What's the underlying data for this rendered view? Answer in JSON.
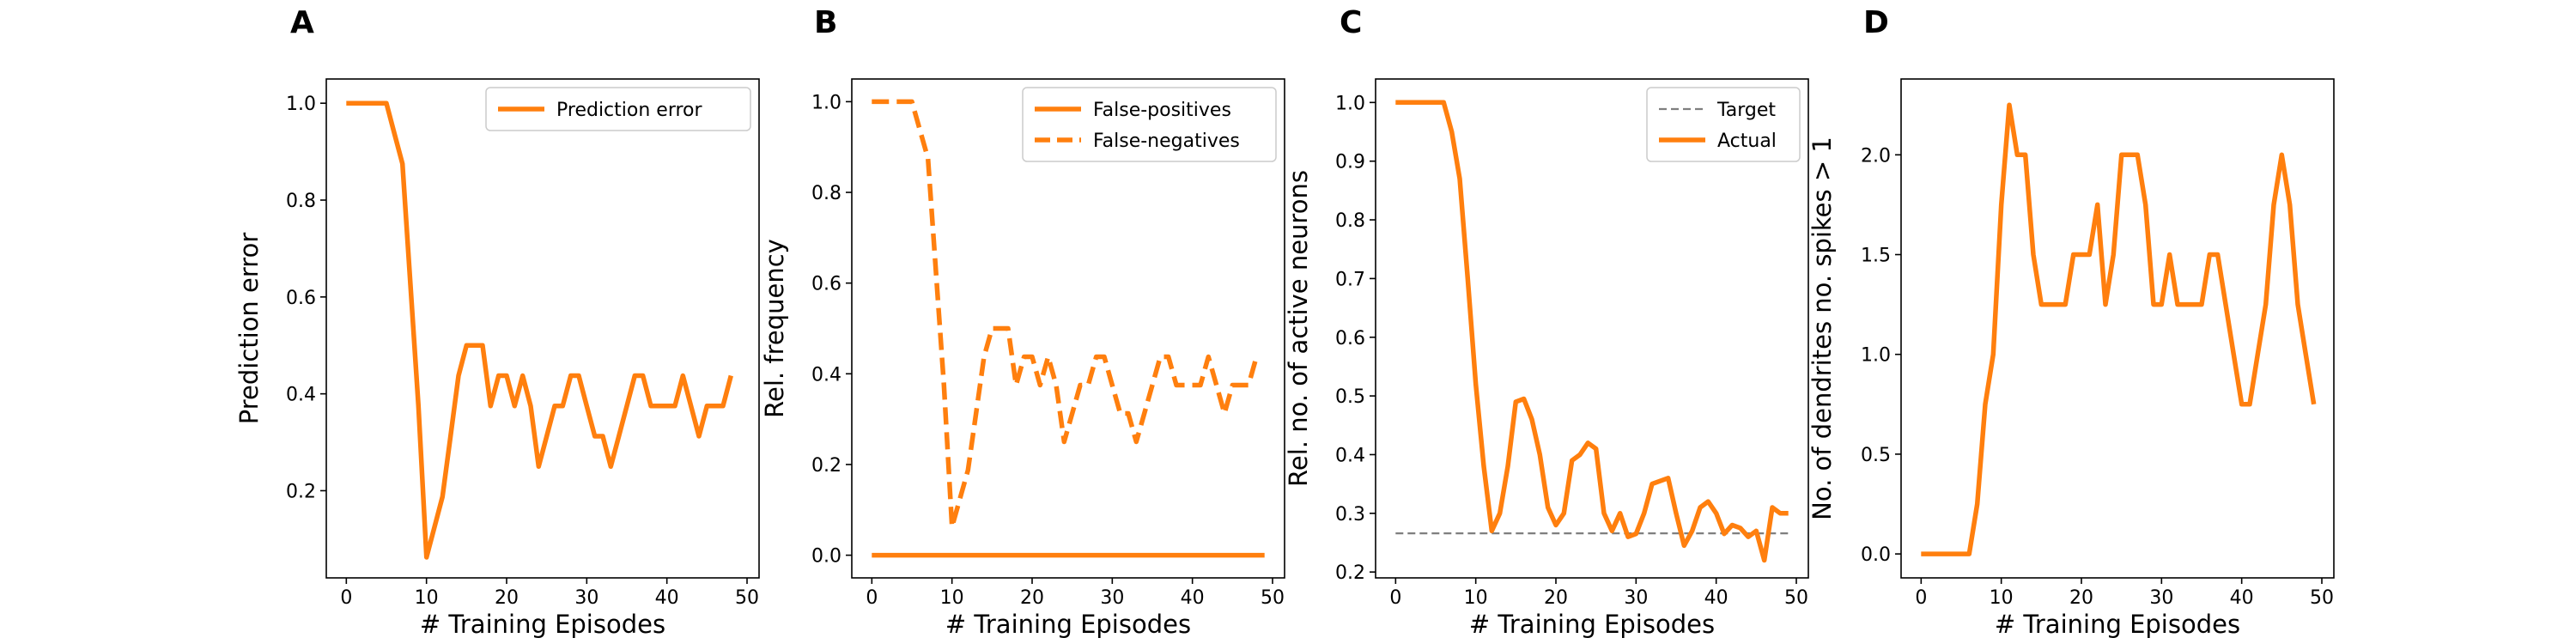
{
  "colors": {
    "orange": "#ff7f0e",
    "target_gray": "#7f7f7f"
  },
  "chart_data": [
    {
      "type": "line",
      "panel_label": "A",
      "xlabel": "# Training Episodes",
      "ylabel": "Prediction error",
      "xlim": [
        -2.5,
        51.5
      ],
      "ylim": [
        0.02,
        1.05
      ],
      "xticks": [
        0,
        10,
        20,
        30,
        40,
        50
      ],
      "yticks": [
        0.2,
        0.4,
        0.6,
        0.8,
        1.0
      ],
      "ytick_labels": [
        "0.2",
        "0.4",
        "0.6",
        "0.8",
        "1.0"
      ],
      "legend_position": "top-right",
      "grid": false,
      "series": [
        {
          "name": "Prediction error",
          "style": "solid",
          "y": [
            1.0,
            1.0,
            1.0,
            1.0,
            1.0,
            1.0,
            0.9375,
            0.875,
            0.625,
            0.375,
            0.0625,
            0.125,
            0.1875,
            0.3125,
            0.4375,
            0.5,
            0.5,
            0.5,
            0.375,
            0.4375,
            0.4375,
            0.375,
            0.4375,
            0.375,
            0.25,
            0.3125,
            0.375,
            0.375,
            0.4375,
            0.4375,
            0.375,
            0.3125,
            0.3125,
            0.25,
            0.3125,
            0.375,
            0.4375,
            0.4375,
            0.375,
            0.375,
            0.375,
            0.375,
            0.4375,
            0.375,
            0.3125,
            0.375,
            0.375,
            0.375,
            0.4375
          ]
        }
      ]
    },
    {
      "type": "line",
      "panel_label": "B",
      "xlabel": "# Training Episodes",
      "ylabel": "Rel. frequency",
      "xlim": [
        -2.5,
        51.5
      ],
      "ylim": [
        -0.05,
        1.05
      ],
      "xticks": [
        0,
        10,
        20,
        30,
        40,
        50
      ],
      "yticks": [
        0.0,
        0.2,
        0.4,
        0.6,
        0.8,
        1.0
      ],
      "ytick_labels": [
        "0.0",
        "0.2",
        "0.4",
        "0.6",
        "0.8",
        "1.0"
      ],
      "legend_position": "top-right",
      "grid": false,
      "series": [
        {
          "name": "False-positives",
          "style": "solid",
          "y": [
            0,
            0,
            0,
            0,
            0,
            0,
            0,
            0,
            0,
            0,
            0,
            0,
            0,
            0,
            0,
            0,
            0,
            0,
            0,
            0,
            0,
            0,
            0,
            0,
            0,
            0,
            0,
            0,
            0,
            0,
            0,
            0,
            0,
            0,
            0,
            0,
            0,
            0,
            0,
            0,
            0,
            0,
            0,
            0,
            0,
            0,
            0,
            0,
            0,
            0
          ]
        },
        {
          "name": "False-negatives",
          "style": "dashed",
          "y": [
            1.0,
            1.0,
            1.0,
            1.0,
            1.0,
            1.0,
            0.9375,
            0.875,
            0.625,
            0.375,
            0.0625,
            0.125,
            0.1875,
            0.3125,
            0.4375,
            0.5,
            0.5,
            0.5,
            0.375,
            0.4375,
            0.4375,
            0.375,
            0.4375,
            0.375,
            0.25,
            0.3125,
            0.375,
            0.375,
            0.4375,
            0.4375,
            0.375,
            0.3125,
            0.3125,
            0.25,
            0.3125,
            0.375,
            0.4375,
            0.4375,
            0.375,
            0.375,
            0.375,
            0.375,
            0.4375,
            0.375,
            0.3125,
            0.375,
            0.375,
            0.375,
            0.4375
          ]
        }
      ]
    },
    {
      "type": "line",
      "panel_label": "C",
      "xlabel": "# Training Episodes",
      "ylabel": "Rel. no. of active neurons",
      "xlim": [
        -2.5,
        51.5
      ],
      "ylim": [
        0.19,
        1.04
      ],
      "xticks": [
        0,
        10,
        20,
        30,
        40,
        50
      ],
      "yticks": [
        0.2,
        0.3,
        0.4,
        0.5,
        0.6,
        0.7,
        0.8,
        0.9,
        1.0
      ],
      "ytick_labels": [
        "0.2",
        "0.3",
        "0.4",
        "0.5",
        "0.6",
        "0.7",
        "0.8",
        "0.9",
        "1.0"
      ],
      "legend_position": "top-right",
      "grid": false,
      "series": [
        {
          "name": "Target",
          "style": "dashed",
          "x": [
            0,
            49
          ],
          "y": [
            0.266,
            0.266
          ]
        },
        {
          "name": "Actual",
          "style": "solid",
          "y": [
            1.0,
            1.0,
            1.0,
            1.0,
            1.0,
            1.0,
            1.0,
            0.95,
            0.87,
            0.7,
            0.52,
            0.38,
            0.27,
            0.3,
            0.38,
            0.49,
            0.495,
            0.46,
            0.4,
            0.31,
            0.28,
            0.3,
            0.39,
            0.4,
            0.42,
            0.41,
            0.3,
            0.27,
            0.3,
            0.26,
            0.265,
            0.3,
            0.35,
            0.355,
            0.36,
            0.3,
            0.245,
            0.27,
            0.31,
            0.32,
            0.3,
            0.265,
            0.28,
            0.275,
            0.26,
            0.27,
            0.22,
            0.31,
            0.3,
            0.3
          ]
        }
      ]
    },
    {
      "type": "line",
      "panel_label": "D",
      "xlabel": "# Training Episodes",
      "ylabel": "No. of dendrites no. spikes > 1",
      "xlim": [
        -2.5,
        51.5
      ],
      "ylim": [
        -0.12,
        2.38
      ],
      "xticks": [
        0,
        10,
        20,
        30,
        40,
        50
      ],
      "yticks": [
        0.0,
        0.5,
        1.0,
        1.5,
        2.0
      ],
      "ytick_labels": [
        "0.0",
        "0.5",
        "1.0",
        "1.5",
        "2.0"
      ],
      "legend_position": "none",
      "grid": false,
      "series": [
        {
          "style": "solid",
          "y": [
            0,
            0,
            0,
            0,
            0,
            0,
            0,
            0.25,
            0.75,
            1.0,
            1.75,
            2.25,
            2.0,
            2.0,
            1.5,
            1.25,
            1.25,
            1.25,
            1.25,
            1.5,
            1.5,
            1.5,
            1.75,
            1.25,
            1.5,
            2.0,
            2.0,
            2.0,
            1.75,
            1.25,
            1.25,
            1.5,
            1.25,
            1.25,
            1.25,
            1.25,
            1.5,
            1.5,
            1.25,
            1.0,
            0.75,
            0.75,
            1.0,
            1.25,
            1.75,
            2.0,
            1.75,
            1.25,
            1.0,
            0.75
          ]
        }
      ]
    }
  ]
}
